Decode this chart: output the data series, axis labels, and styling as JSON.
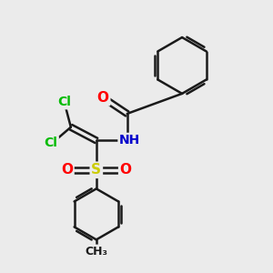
{
  "background_color": "#ebebeb",
  "bond_color": "#1a1a1a",
  "bond_width": 1.8,
  "atom_colors": {
    "O": "#ff0000",
    "N": "#0000cc",
    "S": "#cccc00",
    "Cl": "#00bb00",
    "C": "#1a1a1a",
    "H": "#1a1a1a"
  },
  "font_size": 10,
  "fig_width": 3.0,
  "fig_height": 3.0,
  "dpi": 100,
  "xlim": [
    0,
    10
  ],
  "ylim": [
    0,
    10
  ]
}
